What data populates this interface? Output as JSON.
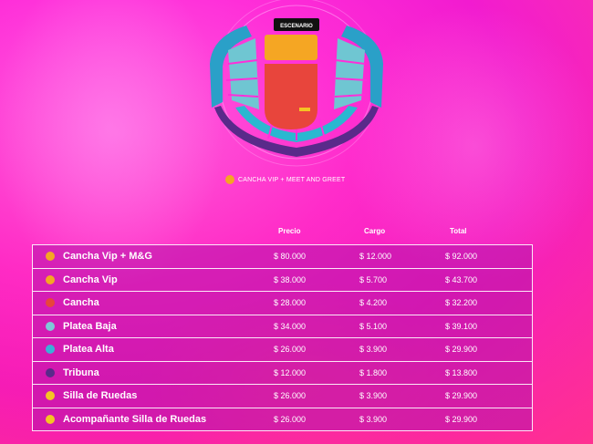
{
  "stage": {
    "label": "ESCENARIO"
  },
  "legend": {
    "label": "CANCHA VIP + MEET AND GREET",
    "color": "#f5a623"
  },
  "columns": {
    "precio": "Precio",
    "cargo": "Cargo",
    "total": "Total"
  },
  "rows": [
    {
      "name": "Cancha Vip + M&G",
      "precio": "$ 80.000",
      "cargo": "$ 12.000",
      "total": "$ 92.000",
      "color": "#f5a623"
    },
    {
      "name": "Cancha Vip",
      "precio": "$ 38.000",
      "cargo": "$ 5.700",
      "total": "$ 43.700",
      "color": "#f5a623"
    },
    {
      "name": "Cancha",
      "precio": "$ 28.000",
      "cargo": "$ 4.200",
      "total": "$ 32.200",
      "color": "#e8453c"
    },
    {
      "name": "Platea Baja",
      "precio": "$ 34.000",
      "cargo": "$ 5.100",
      "total": "$ 39.100",
      "color": "#7ec8d8"
    },
    {
      "name": "Platea Alta",
      "precio": "$ 26.000",
      "cargo": "$ 3.900",
      "total": "$ 29.900",
      "color": "#3ab0d8"
    },
    {
      "name": "Tribuna",
      "precio": "$ 12.000",
      "cargo": "$ 1.800",
      "total": "$ 13.800",
      "color": "#5a2a8a"
    },
    {
      "name": "Silla de Ruedas",
      "precio": "$ 26.000",
      "cargo": "$ 3.900",
      "total": "$ 29.900",
      "color": "#f5c423"
    },
    {
      "name": "Acompañante Silla de Ruedas",
      "precio": "$ 26.000",
      "cargo": "$ 3.900",
      "total": "$ 29.900",
      "color": "#f5c423"
    }
  ]
}
